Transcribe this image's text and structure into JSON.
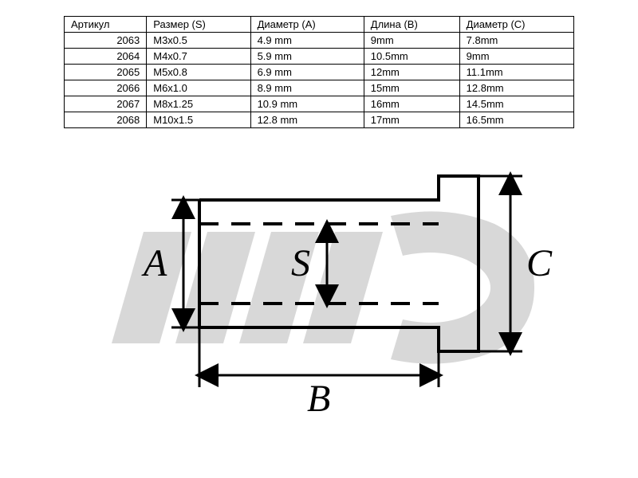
{
  "table": {
    "columns": [
      "Артикул",
      "Размер (S)",
      "Диаметр (A)",
      "Длина (B)",
      "Диаметр (C)"
    ],
    "rows": [
      [
        "2063",
        "M3x0.5",
        "4.9 mm",
        "9mm",
        "7.8mm"
      ],
      [
        "2064",
        "M4x0.7",
        "5.9 mm",
        "10.5mm",
        "9mm"
      ],
      [
        "2065",
        "M5x0.8",
        "6.9 mm",
        "12mm",
        "11.1mm"
      ],
      [
        "2066",
        "M6x1.0",
        "8.9 mm",
        "15mm",
        "12.8mm"
      ],
      [
        "2067",
        "M8x1.25",
        "10.9 mm",
        "16mm",
        "14.5mm"
      ],
      [
        "2068",
        "M10x1.5",
        "12.8 mm",
        "17mm",
        "16.5mm"
      ]
    ],
    "border_color": "#000000",
    "font_size": 13
  },
  "diagram": {
    "type": "technical-drawing",
    "labels": {
      "A": "A",
      "B": "B",
      "C": "C",
      "S": "S"
    },
    "stroke_color": "#000000",
    "stroke_width": 4,
    "dash_pattern": "24,16",
    "label_fontsize": 48,
    "label_fontstyle": "italic",
    "label_fontfamily": "Times New Roman, serif",
    "watermark_color": "#d8d8d8",
    "background_color": "#ffffff",
    "arrow_size": 12
  }
}
